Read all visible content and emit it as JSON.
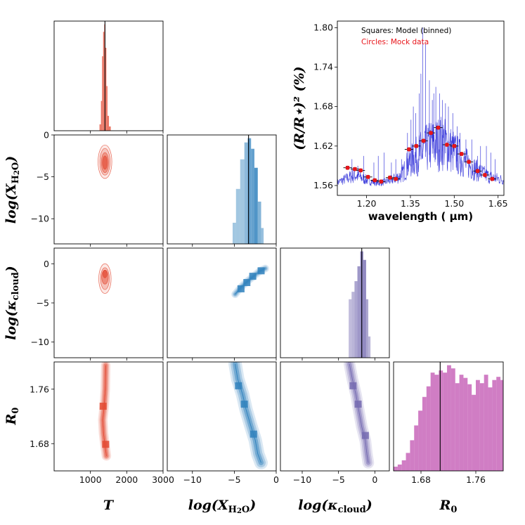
{
  "chart_data": [
    {
      "type": "histogram",
      "panel": "T-marginal",
      "series_name": "T",
      "color": "#e34a33",
      "truth": 1400,
      "xlim": [
        0,
        3000
      ],
      "bins": [
        {
          "x0": 1250,
          "x1": 1290,
          "h": 0.06
        },
        {
          "x0": 1290,
          "x1": 1320,
          "h": 0.28
        },
        {
          "x0": 1320,
          "x1": 1350,
          "h": 0.7
        },
        {
          "x0": 1350,
          "x1": 1380,
          "h": 0.93
        },
        {
          "x0": 1380,
          "x1": 1410,
          "h": 1.0
        },
        {
          "x0": 1410,
          "x1": 1440,
          "h": 0.78
        },
        {
          "x0": 1440,
          "x1": 1470,
          "h": 0.42
        },
        {
          "x0": 1470,
          "x1": 1510,
          "h": 0.14
        },
        {
          "x0": 1510,
          "x1": 1560,
          "h": 0.04
        }
      ]
    },
    {
      "type": "histogram",
      "panel": "H2O-marginal",
      "color": "#3182bd",
      "truth": -3.3,
      "xlim": [
        -13,
        0
      ],
      "bins": [
        {
          "x0": -5.2,
          "x1": -4.8,
          "h": 0.2,
          "alpha": 0.45
        },
        {
          "x0": -4.8,
          "x1": -4.3,
          "h": 0.52,
          "alpha": 0.45
        },
        {
          "x0": -4.3,
          "x1": -3.8,
          "h": 0.8,
          "alpha": 0.45
        },
        {
          "x0": -3.8,
          "x1": -3.4,
          "h": 0.96,
          "alpha": 0.55
        },
        {
          "x0": -3.4,
          "x1": -3.0,
          "h": 1.0,
          "alpha": 0.75
        },
        {
          "x0": -3.0,
          "x1": -2.6,
          "h": 0.9,
          "alpha": 0.75
        },
        {
          "x0": -2.6,
          "x1": -2.2,
          "h": 0.72,
          "alpha": 0.85
        },
        {
          "x0": -2.2,
          "x1": -1.8,
          "h": 0.4,
          "alpha": 0.6
        },
        {
          "x0": -1.8,
          "x1": -1.5,
          "h": 0.15,
          "alpha": 0.5
        }
      ]
    },
    {
      "type": "histogram",
      "panel": "kappa-marginal",
      "color": "#756bb1",
      "truth": -1.8,
      "xlim": [
        -13,
        2
      ],
      "bins": [
        {
          "x0": -3.6,
          "x1": -3.2,
          "h": 0.55,
          "alpha": 0.45
        },
        {
          "x0": -3.2,
          "x1": -2.8,
          "h": 0.62,
          "alpha": 0.5
        },
        {
          "x0": -2.8,
          "x1": -2.4,
          "h": 0.72,
          "alpha": 0.6
        },
        {
          "x0": -2.4,
          "x1": -2.0,
          "h": 0.86,
          "alpha": 0.7
        },
        {
          "x0": -2.0,
          "x1": -1.6,
          "h": 1.0,
          "alpha": 0.85
        },
        {
          "x0": -1.6,
          "x1": -1.2,
          "h": 0.92,
          "alpha": 0.8
        },
        {
          "x0": -1.2,
          "x1": -0.9,
          "h": 0.55,
          "alpha": 0.6
        },
        {
          "x0": -0.9,
          "x1": -0.6,
          "h": 0.2,
          "alpha": 0.5
        }
      ]
    },
    {
      "type": "histogram",
      "panel": "R0-marginal",
      "color": "#c051b0",
      "truth": 1.708,
      "xlim": [
        1.64,
        1.8
      ],
      "bins": [
        {
          "x0": 1.64,
          "x1": 1.646,
          "h": 0.04
        },
        {
          "x0": 1.646,
          "x1": 1.652,
          "h": 0.06
        },
        {
          "x0": 1.652,
          "x1": 1.658,
          "h": 0.1
        },
        {
          "x0": 1.658,
          "x1": 1.664,
          "h": 0.17
        },
        {
          "x0": 1.664,
          "x1": 1.67,
          "h": 0.29
        },
        {
          "x0": 1.67,
          "x1": 1.676,
          "h": 0.43
        },
        {
          "x0": 1.676,
          "x1": 1.682,
          "h": 0.57
        },
        {
          "x0": 1.682,
          "x1": 1.688,
          "h": 0.7
        },
        {
          "x0": 1.688,
          "x1": 1.694,
          "h": 0.8
        },
        {
          "x0": 1.694,
          "x1": 1.7,
          "h": 0.93
        },
        {
          "x0": 1.7,
          "x1": 1.706,
          "h": 0.91
        },
        {
          "x0": 1.706,
          "x1": 1.712,
          "h": 0.95
        },
        {
          "x0": 1.712,
          "x1": 1.718,
          "h": 0.93
        },
        {
          "x0": 1.718,
          "x1": 1.724,
          "h": 1.0
        },
        {
          "x0": 1.724,
          "x1": 1.73,
          "h": 0.97
        },
        {
          "x0": 1.73,
          "x1": 1.736,
          "h": 0.83
        },
        {
          "x0": 1.736,
          "x1": 1.742,
          "h": 0.91
        },
        {
          "x0": 1.742,
          "x1": 1.748,
          "h": 0.88
        },
        {
          "x0": 1.748,
          "x1": 1.754,
          "h": 0.82
        },
        {
          "x0": 1.754,
          "x1": 1.76,
          "h": 0.72
        },
        {
          "x0": 1.76,
          "x1": 1.766,
          "h": 0.86
        },
        {
          "x0": 1.766,
          "x1": 1.772,
          "h": 0.83
        },
        {
          "x0": 1.772,
          "x1": 1.778,
          "h": 0.91
        },
        {
          "x0": 1.778,
          "x1": 1.784,
          "h": 0.79
        },
        {
          "x0": 1.784,
          "x1": 1.79,
          "h": 0.86
        },
        {
          "x0": 1.79,
          "x1": 1.796,
          "h": 0.89
        },
        {
          "x0": 1.796,
          "x1": 1.8,
          "h": 0.86
        }
      ]
    },
    {
      "type": "contour",
      "panel": "T-vs-logX",
      "color": "#e34a33",
      "xlim": [
        0,
        3000
      ],
      "ylim": [
        -13,
        0
      ],
      "regions": [
        {
          "cx": 1400,
          "cy": -3.2,
          "rx": 190,
          "ry": 2.0,
          "opacity": 0.12
        },
        {
          "cx": 1400,
          "cy": -3.2,
          "rx": 140,
          "ry": 1.6,
          "opacity": 0.22
        },
        {
          "cx": 1400,
          "cy": -3.3,
          "rx": 100,
          "ry": 1.2,
          "opacity": 0.4
        },
        {
          "cx": 1400,
          "cy": -3.3,
          "rx": 70,
          "ry": 0.8,
          "opacity": 0.65
        }
      ]
    },
    {
      "type": "contour",
      "panel": "T-vs-logKappa",
      "color": "#e34a33",
      "xlim": [
        0,
        3000
      ],
      "ylim": [
        -12,
        2
      ],
      "regions": [
        {
          "cx": 1400,
          "cy": -1.9,
          "rx": 170,
          "ry": 1.9,
          "opacity": 0.12
        },
        {
          "cx": 1400,
          "cy": -1.9,
          "rx": 120,
          "ry": 1.4,
          "opacity": 0.25
        },
        {
          "cx": 1400,
          "cy": -1.7,
          "rx": 90,
          "ry": 0.9,
          "opacity": 0.45
        },
        {
          "cx": 1400,
          "cy": -1.3,
          "rx": 60,
          "ry": 0.5,
          "opacity": 0.7
        }
      ]
    },
    {
      "type": "contour",
      "panel": "logX-vs-logKappa",
      "color": "#3182bd",
      "xlim": [
        -13,
        0
      ],
      "ylim": [
        -12,
        2
      ],
      "ridge": [
        [
          -4.9,
          -3.9
        ],
        [
          -4.2,
          -3.0
        ],
        [
          -3.4,
          -2.2
        ],
        [
          -2.6,
          -1.5
        ],
        [
          -1.9,
          -0.9
        ],
        [
          -1.3,
          -0.6
        ]
      ],
      "width": [
        0.9,
        0.6,
        0.35
      ],
      "blocks": [
        [
          -4.2,
          -3.2
        ],
        [
          -3.5,
          -2.4
        ],
        [
          -2.8,
          -1.6
        ],
        [
          -1.8,
          -0.9
        ]
      ]
    },
    {
      "type": "contour",
      "panel": "T-vs-R0",
      "color": "#e34a33",
      "xlim": [
        0,
        3000
      ],
      "ylim": [
        1.64,
        1.8
      ],
      "ridge": [
        [
          1420,
          1.795
        ],
        [
          1410,
          1.76
        ],
        [
          1380,
          1.735
        ],
        [
          1340,
          1.715
        ],
        [
          1360,
          1.695
        ],
        [
          1400,
          1.678
        ],
        [
          1440,
          1.662
        ]
      ],
      "width": [
        260,
        180,
        110
      ],
      "blocks": [
        [
          1420,
          1.679
        ],
        [
          1350,
          1.735
        ]
      ]
    },
    {
      "type": "contour",
      "panel": "logX-vs-R0",
      "color": "#3182bd",
      "xlim": [
        -13,
        0
      ],
      "ylim": [
        1.64,
        1.8
      ],
      "ridge": [
        [
          -4.9,
          1.797
        ],
        [
          -4.6,
          1.775
        ],
        [
          -4.0,
          1.752
        ],
        [
          -3.6,
          1.73
        ],
        [
          -3.0,
          1.705
        ],
        [
          -2.5,
          1.685
        ],
        [
          -2.2,
          1.665
        ],
        [
          -1.8,
          1.652
        ]
      ],
      "width": [
        1.6,
        1.1,
        0.6
      ],
      "blocks": [
        [
          -4.5,
          1.765
        ],
        [
          -3.8,
          1.738
        ],
        [
          -2.7,
          1.694
        ]
      ]
    },
    {
      "type": "contour",
      "panel": "logKappa-vs-R0",
      "color": "#756bb1",
      "xlim": [
        -13,
        2
      ],
      "ylim": [
        1.64,
        1.8
      ],
      "ridge": [
        [
          -3.5,
          1.797
        ],
        [
          -3.1,
          1.775
        ],
        [
          -2.6,
          1.752
        ],
        [
          -2.2,
          1.728
        ],
        [
          -1.8,
          1.705
        ],
        [
          -1.3,
          1.684
        ],
        [
          -1.1,
          1.665
        ],
        [
          -0.9,
          1.652
        ]
      ],
      "width": [
        1.6,
        1.1,
        0.6
      ],
      "blocks": [
        [
          -3.0,
          1.765
        ],
        [
          -2.3,
          1.738
        ],
        [
          -1.3,
          1.692
        ]
      ]
    },
    {
      "type": "line",
      "panel": "spectrum",
      "xlabel": "wavelength ( μm)",
      "ylabel": "(R/R⋆)² (%)",
      "xlim": [
        1.1,
        1.67
      ],
      "ylim": [
        1.545,
        1.81
      ],
      "xticks": [
        "1.20",
        "1.35",
        "1.50",
        "1.65"
      ],
      "yticks": [
        "1.56",
        "1.62",
        "1.68",
        "1.74",
        "1.80"
      ],
      "model_color": "#1f1fd6",
      "data_color": "#e8141a",
      "baseline_nodes": [
        [
          1.1,
          1.563
        ],
        [
          1.16,
          1.572
        ],
        [
          1.2,
          1.566
        ],
        [
          1.24,
          1.562
        ],
        [
          1.28,
          1.565
        ],
        [
          1.32,
          1.572
        ],
        [
          1.34,
          1.585
        ],
        [
          1.38,
          1.598
        ],
        [
          1.42,
          1.608
        ],
        [
          1.46,
          1.612
        ],
        [
          1.5,
          1.6
        ],
        [
          1.54,
          1.587
        ],
        [
          1.58,
          1.577
        ],
        [
          1.62,
          1.57
        ],
        [
          1.67,
          1.566
        ]
      ],
      "spikes": [
        {
          "x": 1.392,
          "y": 1.8
        },
        {
          "x": 1.402,
          "y": 1.775
        },
        {
          "x": 1.386,
          "y": 1.73
        },
        {
          "x": 1.415,
          "y": 1.72
        },
        {
          "x": 1.38,
          "y": 1.7
        },
        {
          "x": 1.43,
          "y": 1.7
        },
        {
          "x": 1.425,
          "y": 1.69
        },
        {
          "x": 1.437,
          "y": 1.71
        },
        {
          "x": 1.45,
          "y": 1.7
        },
        {
          "x": 1.46,
          "y": 1.69
        },
        {
          "x": 1.47,
          "y": 1.685
        },
        {
          "x": 1.36,
          "y": 1.68
        },
        {
          "x": 1.352,
          "y": 1.66
        },
        {
          "x": 1.368,
          "y": 1.67
        },
        {
          "x": 1.48,
          "y": 1.68
        },
        {
          "x": 1.495,
          "y": 1.67
        },
        {
          "x": 1.51,
          "y": 1.65
        },
        {
          "x": 1.52,
          "y": 1.64
        },
        {
          "x": 1.54,
          "y": 1.63
        },
        {
          "x": 1.56,
          "y": 1.63
        },
        {
          "x": 1.59,
          "y": 1.62
        },
        {
          "x": 1.61,
          "y": 1.62
        },
        {
          "x": 1.625,
          "y": 1.61
        },
        {
          "x": 1.64,
          "y": 1.6
        },
        {
          "x": 1.26,
          "y": 1.61
        },
        {
          "x": 1.3,
          "y": 1.6
        },
        {
          "x": 1.24,
          "y": 1.605
        },
        {
          "x": 1.19,
          "y": 1.605
        },
        {
          "x": 1.15,
          "y": 1.6
        },
        {
          "x": 1.17,
          "y": 1.59
        },
        {
          "x": 1.225,
          "y": 1.595
        },
        {
          "x": 1.285,
          "y": 1.595
        },
        {
          "x": 1.32,
          "y": 1.6
        },
        {
          "x": 1.34,
          "y": 1.64
        },
        {
          "x": 1.58,
          "y": 1.605
        }
      ],
      "mock_data": [
        {
          "x": 1.135,
          "y": 1.587
        },
        {
          "x": 1.16,
          "y": 1.585
        },
        {
          "x": 1.18,
          "y": 1.583
        },
        {
          "x": 1.205,
          "y": 1.573
        },
        {
          "x": 1.228,
          "y": 1.568
        },
        {
          "x": 1.25,
          "y": 1.566
        },
        {
          "x": 1.28,
          "y": 1.572
        },
        {
          "x": 1.3,
          "y": 1.57
        },
        {
          "x": 1.345,
          "y": 1.615
        },
        {
          "x": 1.37,
          "y": 1.62
        },
        {
          "x": 1.395,
          "y": 1.628
        },
        {
          "x": 1.42,
          "y": 1.64
        },
        {
          "x": 1.445,
          "y": 1.648
        },
        {
          "x": 1.475,
          "y": 1.622
        },
        {
          "x": 1.5,
          "y": 1.62
        },
        {
          "x": 1.525,
          "y": 1.608
        },
        {
          "x": 1.55,
          "y": 1.596
        },
        {
          "x": 1.58,
          "y": 1.582
        },
        {
          "x": 1.605,
          "y": 1.576
        },
        {
          "x": 1.63,
          "y": 1.57
        }
      ],
      "legend": [
        {
          "text": "Squares: Model (binned)",
          "color": "#000000"
        },
        {
          "text": "Circles: Mock data",
          "color": "#e8141a"
        }
      ]
    }
  ],
  "axes": {
    "T": {
      "label": "T",
      "ticks": [
        "1000",
        "2000",
        "3000"
      ],
      "values": [
        1000,
        2000,
        3000
      ]
    },
    "logX": {
      "label": "log(X",
      "sub": "H",
      "sub2": "2",
      "tail": "O)",
      "ticks": [
        "−10",
        "−5",
        "0"
      ],
      "values": [
        -10,
        -5,
        0
      ]
    },
    "logKappa": {
      "label": "log(κ",
      "sub": "cloud",
      "tail": ")",
      "ticks": [
        "−10",
        "−5",
        "0"
      ],
      "values": [
        -10,
        -5,
        0
      ]
    },
    "R0": {
      "label": "R",
      "sub": "0",
      "ticks": [
        "1.68",
        "1.76"
      ],
      "values": [
        1.68,
        1.76
      ]
    },
    "logX_y": {
      "ticks": [
        "0",
        "−5",
        "−10"
      ],
      "values": [
        0,
        -5,
        -10
      ]
    },
    "logKappa_y": {
      "ticks": [
        "0",
        "−5",
        "−10"
      ],
      "values": [
        0,
        -5,
        -10
      ]
    },
    "R0_y": {
      "ticks": [
        "1.76",
        "1.68"
      ],
      "values": [
        1.76,
        1.68
      ]
    }
  }
}
